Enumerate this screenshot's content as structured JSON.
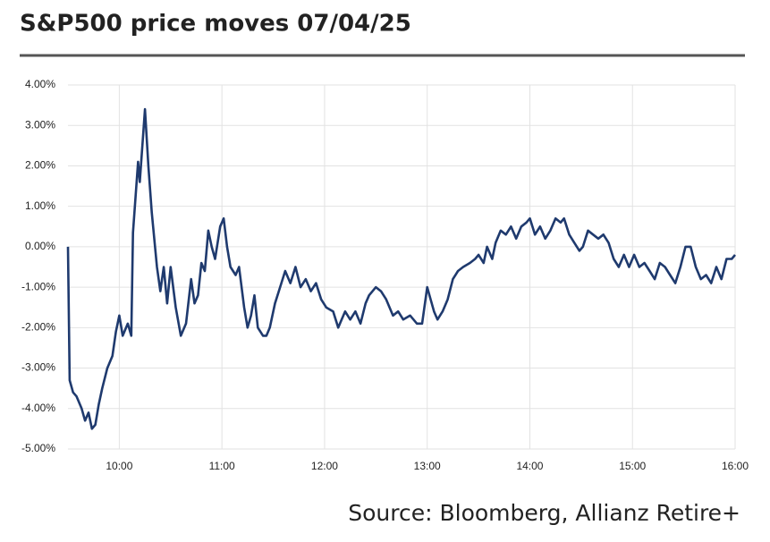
{
  "chart_data": {
    "type": "line",
    "title": "S&P500 price moves 07/04/25",
    "source": "Source: Bloomberg, Allianz Retire+",
    "x": [
      "09:30",
      "09:31",
      "09:33",
      "09:35",
      "09:38",
      "09:40",
      "09:42",
      "09:44",
      "09:46",
      "09:48",
      "09:50",
      "09:53",
      "09:56",
      "09:58",
      "10:00",
      "10:02",
      "10:05",
      "10:07",
      "10:08",
      "10:11",
      "10:12",
      "10:15",
      "10:17",
      "10:19",
      "10:22",
      "10:24",
      "10:26",
      "10:28",
      "10:30",
      "10:33",
      "10:36",
      "10:39",
      "10:42",
      "10:44",
      "10:46",
      "10:48",
      "10:50",
      "10:52",
      "10:54",
      "10:56",
      "10:59",
      "11:01",
      "11:03",
      "11:05",
      "11:08",
      "11:10",
      "11:13",
      "11:15",
      "11:17",
      "11:19",
      "11:21",
      "11:24",
      "11:26",
      "11:28",
      "11:31",
      "11:34",
      "11:37",
      "11:40",
      "11:43",
      "11:46",
      "11:49",
      "11:52",
      "11:55",
      "11:58",
      "12:01",
      "12:05",
      "12:08",
      "12:12",
      "12:15",
      "12:18",
      "12:21",
      "12:24",
      "12:26",
      "12:30",
      "12:33",
      "12:36",
      "12:40",
      "12:43",
      "12:46",
      "12:50",
      "12:54",
      "12:57",
      "13:00",
      "13:02",
      "13:04",
      "13:06",
      "13:09",
      "13:12",
      "13:15",
      "13:18",
      "13:21",
      "13:25",
      "13:28",
      "13:30",
      "13:33",
      "13:35",
      "13:38",
      "13:40",
      "13:43",
      "13:46",
      "13:49",
      "13:52",
      "13:55",
      "13:58",
      "14:00",
      "14:03",
      "14:06",
      "14:09",
      "14:12",
      "14:15",
      "14:18",
      "14:20",
      "14:23",
      "14:26",
      "14:29",
      "14:31",
      "14:34",
      "14:37",
      "14:40",
      "14:43",
      "14:46",
      "14:49",
      "14:52",
      "14:55",
      "14:58",
      "15:01",
      "15:04",
      "15:07",
      "15:10",
      "15:13",
      "15:16",
      "15:19",
      "15:22",
      "15:25",
      "15:28",
      "15:31",
      "15:34",
      "15:37",
      "15:40",
      "15:43",
      "15:46",
      "15:49",
      "15:52",
      "15:55",
      "15:58",
      "16:00"
    ],
    "series": [
      {
        "color": "#1f3a6e",
        "values": [
          0.0,
          -3.3,
          -3.6,
          -3.7,
          -4.0,
          -4.3,
          -4.1,
          -4.5,
          -4.4,
          -3.9,
          -3.5,
          -3.0,
          -2.7,
          -2.1,
          -1.7,
          -2.2,
          -1.9,
          -2.2,
          0.35,
          2.1,
          1.6,
          3.4,
          2.0,
          0.85,
          -0.5,
          -1.1,
          -0.5,
          -1.4,
          -0.5,
          -1.5,
          -2.2,
          -1.9,
          -0.8,
          -1.4,
          -1.2,
          -0.4,
          -0.6,
          0.4,
          0.0,
          -0.3,
          0.5,
          0.7,
          0.0,
          -0.5,
          -0.7,
          -0.5,
          -1.5,
          -2.0,
          -1.7,
          -1.2,
          -2.0,
          -2.2,
          -2.2,
          -2.0,
          -1.4,
          -1.0,
          -0.6,
          -0.9,
          -0.5,
          -1.0,
          -0.8,
          -1.1,
          -0.9,
          -1.3,
          -1.5,
          -1.6,
          -2.0,
          -1.6,
          -1.8,
          -1.6,
          -1.9,
          -1.4,
          -1.2,
          -1.0,
          -1.1,
          -1.3,
          -1.7,
          -1.6,
          -1.8,
          -1.7,
          -1.9,
          -1.9,
          -1.0,
          -1.3,
          -1.6,
          -1.8,
          -1.6,
          -1.3,
          -0.8,
          -0.6,
          -0.5,
          -0.4,
          -0.3,
          -0.2,
          -0.4,
          0.0,
          -0.3,
          0.1,
          0.4,
          0.3,
          0.5,
          0.2,
          0.5,
          0.6,
          0.7,
          0.3,
          0.5,
          0.2,
          0.4,
          0.7,
          0.6,
          0.7,
          0.3,
          0.1,
          -0.1,
          0.0,
          0.4,
          0.3,
          0.2,
          0.3,
          0.1,
          -0.3,
          -0.5,
          -0.2,
          -0.5,
          -0.2,
          -0.5,
          -0.4,
          -0.6,
          -0.8,
          -0.4,
          -0.5,
          -0.7,
          -0.9,
          -0.5,
          0.0,
          0.0,
          -0.5,
          -0.8,
          -0.7,
          -0.9,
          -0.5,
          -0.8,
          -0.3,
          -0.3,
          -0.2
        ]
      }
    ],
    "xlim": [
      "09:30",
      "16:00"
    ],
    "xticks": [
      "10:00",
      "11:00",
      "12:00",
      "13:00",
      "14:00",
      "15:00",
      "16:00"
    ],
    "ylim": [
      -5,
      4
    ],
    "yticks": [
      {
        "value": 4,
        "label": "4.00%"
      },
      {
        "value": 3,
        "label": "3.00%"
      },
      {
        "value": 2,
        "label": "2.00%"
      },
      {
        "value": 1,
        "label": "1.00%"
      },
      {
        "value": 0,
        "label": "0.00%"
      },
      {
        "value": -1,
        "label": "-1.00%"
      },
      {
        "value": -2,
        "label": "-2.00%"
      },
      {
        "value": -3,
        "label": "-3.00%"
      },
      {
        "value": -4,
        "label": "-4.00%"
      },
      {
        "value": -5,
        "label": "-5.00%"
      }
    ],
    "grid": true
  }
}
